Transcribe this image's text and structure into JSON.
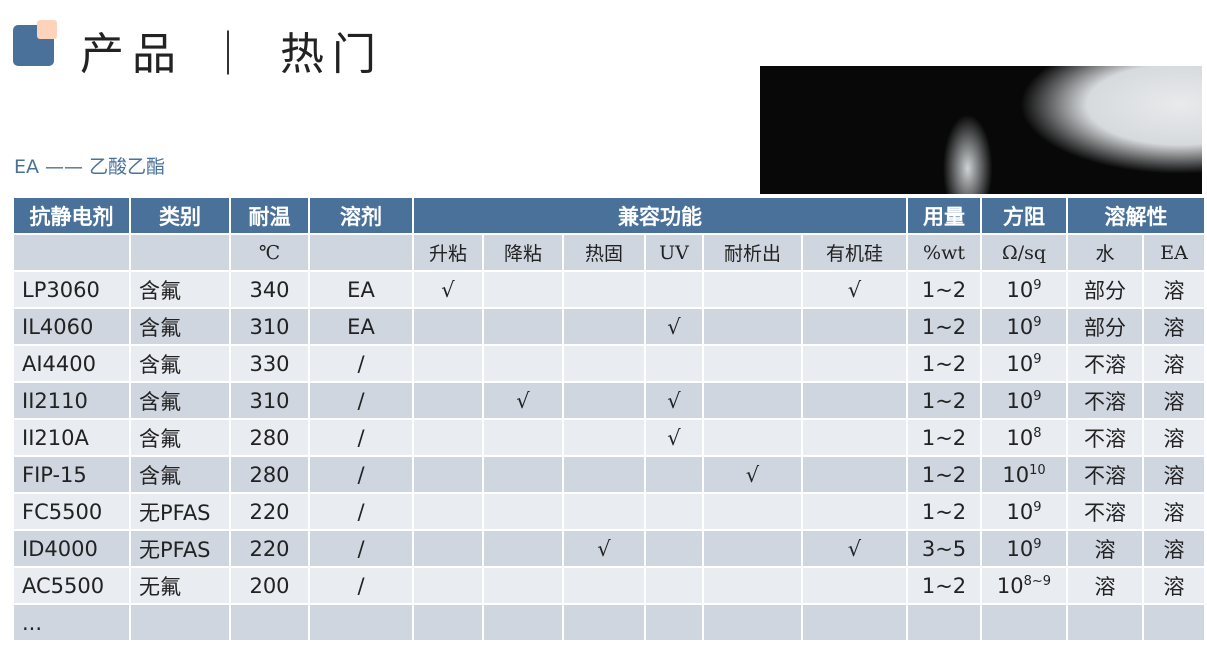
{
  "header": {
    "title": "产品 ｜ 热门",
    "subtitle": "EA —— 乙酸乙酯"
  },
  "table": {
    "headers": [
      "抗静电剂",
      "类别",
      "耐温",
      "溶剂",
      "兼容功能",
      "用量",
      "方阻",
      "溶解性"
    ],
    "subheaders": [
      "",
      "",
      "℃",
      "",
      "升粘",
      "降粘",
      "热固",
      "UV",
      "耐析出",
      "有机硅",
      "%wt",
      "Ω/sq",
      "水",
      "EA"
    ],
    "rows": [
      [
        "LP3060",
        "含氟",
        "340",
        "EA",
        "√",
        "",
        "",
        "",
        "",
        "√",
        "1~2",
        "10",
        "9",
        "部分",
        "溶"
      ],
      [
        "IL4060",
        "含氟",
        "310",
        "EA",
        "",
        "",
        "",
        "√",
        "",
        "",
        "1~2",
        "10",
        "9",
        "部分",
        "溶"
      ],
      [
        "AI4400",
        "含氟",
        "330",
        "/",
        "",
        "",
        "",
        "",
        "",
        "",
        "1~2",
        "10",
        "9",
        "不溶",
        "溶"
      ],
      [
        "II2110",
        "含氟",
        "310",
        "/",
        "",
        "√",
        "",
        "√",
        "",
        "",
        "1~2",
        "10",
        "9",
        "不溶",
        "溶"
      ],
      [
        "II210A",
        "含氟",
        "280",
        "/",
        "",
        "",
        "",
        "√",
        "",
        "",
        "1~2",
        "10",
        "8",
        "不溶",
        "溶"
      ],
      [
        "FIP-15",
        "含氟",
        "280",
        "/",
        "",
        "",
        "",
        "",
        "√",
        "",
        "1~2",
        "10",
        "10",
        "不溶",
        "溶"
      ],
      [
        "FC5500",
        "无PFAS",
        "220",
        "/",
        "",
        "",
        "",
        "",
        "",
        "",
        "1~2",
        "10",
        "9",
        "不溶",
        "溶"
      ],
      [
        "ID4000",
        "无PFAS",
        "220",
        "/",
        "",
        "",
        "√",
        "",
        "",
        "√",
        "3~5",
        "10",
        "9",
        "溶",
        "溶"
      ],
      [
        "AC5500",
        "无氟",
        "200",
        "/",
        "",
        "",
        "",
        "",
        "",
        "",
        "1~2",
        "10",
        "8~9",
        "溶",
        "溶"
      ],
      [
        "...",
        "",
        "",
        "",
        "",
        "",
        "",
        "",
        "",
        "",
        "",
        "",
        "",
        "",
        ""
      ]
    ]
  }
}
